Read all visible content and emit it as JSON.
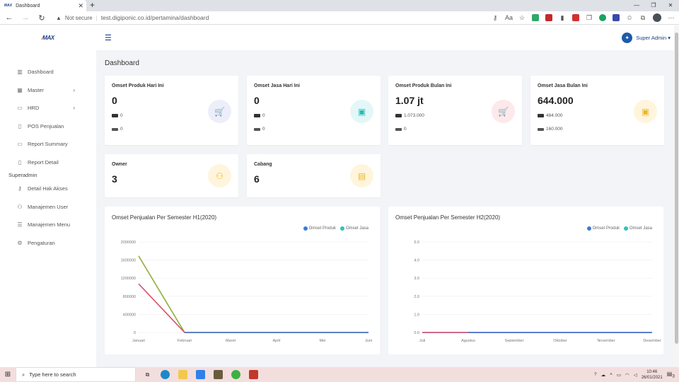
{
  "browser": {
    "tab_title": "Dashboard",
    "tab_logo": "MAX",
    "new_tab": "+",
    "security": "Not secure",
    "url": "test.digiponic.co.id/pertamina/dashboard",
    "window_controls": [
      "—",
      "❐",
      "✕"
    ]
  },
  "brand": {
    "logo": "MAX"
  },
  "sidebar": {
    "items": [
      {
        "label": "Dashboard",
        "icon": "chart-bar-icon",
        "glyph": "▥",
        "arrow": ""
      },
      {
        "label": "Master",
        "icon": "grid-icon",
        "glyph": "▦",
        "arrow": "›"
      },
      {
        "label": "HRD",
        "icon": "folder-icon",
        "glyph": "▭",
        "arrow": "›"
      },
      {
        "label": "POS Penjualan",
        "icon": "document-icon",
        "glyph": "▯",
        "arrow": ""
      },
      {
        "label": "Report Summary",
        "icon": "monitor-icon",
        "glyph": "▭",
        "arrow": ""
      },
      {
        "label": "Report Detail",
        "icon": "file-icon",
        "glyph": "▯",
        "arrow": ""
      }
    ],
    "section": "Superadmin",
    "admin_items": [
      {
        "label": "Detail Hak Akses",
        "icon": "key-icon",
        "glyph": "⚷"
      },
      {
        "label": "Manajemen User",
        "icon": "user-icon",
        "glyph": "⚇"
      },
      {
        "label": "Manajemen Menu",
        "icon": "menu-icon",
        "glyph": "☰"
      },
      {
        "label": "Pengaturan",
        "icon": "gear-icon",
        "glyph": "⚙"
      }
    ]
  },
  "topbar": {
    "user_name": "Super Admin ▾",
    "hamburger": "☰"
  },
  "page_title": "Dashboard",
  "cards": [
    {
      "title": "Omset Produk Hari Ini",
      "value": "0",
      "cash": "0",
      "card": "0",
      "icon": "cart-icon",
      "glyph": "🛒",
      "bg": "#eceef9",
      "fg": "#5a6bd1"
    },
    {
      "title": "Omset Jasa Hari Ini",
      "value": "0",
      "cash": "0",
      "card": "0",
      "icon": "wallet-icon",
      "glyph": "▣",
      "bg": "#e3f7f7",
      "fg": "#2bb8b8"
    },
    {
      "title": "Omset Produk Bulan Ini",
      "value": "1.07 jt",
      "cash": "1.073.000",
      "card": "0",
      "icon": "cart-icon",
      "glyph": "🛒",
      "bg": "#fde8ea",
      "fg": "#e0525e"
    },
    {
      "title": "Omset Jasa Bulan Ini",
      "value": "644.000",
      "cash": "484.000",
      "card": "160.000",
      "icon": "wallet-icon",
      "glyph": "▣",
      "bg": "#fff5dd",
      "fg": "#f0b429"
    },
    {
      "title": "Owner",
      "value": "3",
      "icon": "users-icon",
      "glyph": "⚇",
      "bg": "#fff5dd",
      "fg": "#f0b429"
    },
    {
      "title": "Cabang",
      "value": "6",
      "icon": "store-icon",
      "glyph": "▤",
      "bg": "#fff5dd",
      "fg": "#f0b429"
    }
  ],
  "chart_data": [
    {
      "type": "line",
      "title": "Omset Penjualan Per Semester H1(2020)",
      "categories": [
        "Januari",
        "Februari",
        "Maret",
        "April",
        "Mei",
        "Juni"
      ],
      "ylim": [
        0,
        2000000
      ],
      "yticks": [
        "2000000",
        "1600000",
        "1200000",
        "800000",
        "400000",
        "0"
      ],
      "series": [
        {
          "name": "Omset Produk",
          "color": "#3a7bd5",
          "values": [
            1073000,
            0,
            0,
            0,
            0,
            0
          ]
        },
        {
          "name": "Omset Jasa",
          "color": "#2ec4b6",
          "values": [
            1690000,
            0,
            0,
            0,
            0,
            0
          ]
        }
      ],
      "render_colors": [
        "#d9536a",
        "#8fae3c"
      ],
      "legend": "top-right"
    },
    {
      "type": "line",
      "title": "Omset Penjualan Per Semester H2(2020)",
      "categories": [
        "Juli",
        "Agustus",
        "September",
        "Oktober",
        "November",
        "Desember"
      ],
      "ylim": [
        0,
        5
      ],
      "yticks": [
        "5.0",
        "4.0",
        "3.0",
        "2.0",
        "1.0",
        "0.0"
      ],
      "series": [
        {
          "name": "Omset Produk",
          "color": "#3a7bd5",
          "values": [
            0,
            0,
            0,
            0,
            0,
            0
          ]
        },
        {
          "name": "Omset Jasa",
          "color": "#2ec4b6",
          "values": [
            0,
            0,
            0,
            0,
            0,
            0
          ]
        }
      ],
      "render_colors": [
        "#d9536a",
        "#3a7bd5"
      ],
      "legend": "top-right"
    }
  ],
  "taskbar": {
    "search_placeholder": "Type here to search",
    "time": "10:46",
    "date": "26/01/2021",
    "notifications": "3"
  }
}
